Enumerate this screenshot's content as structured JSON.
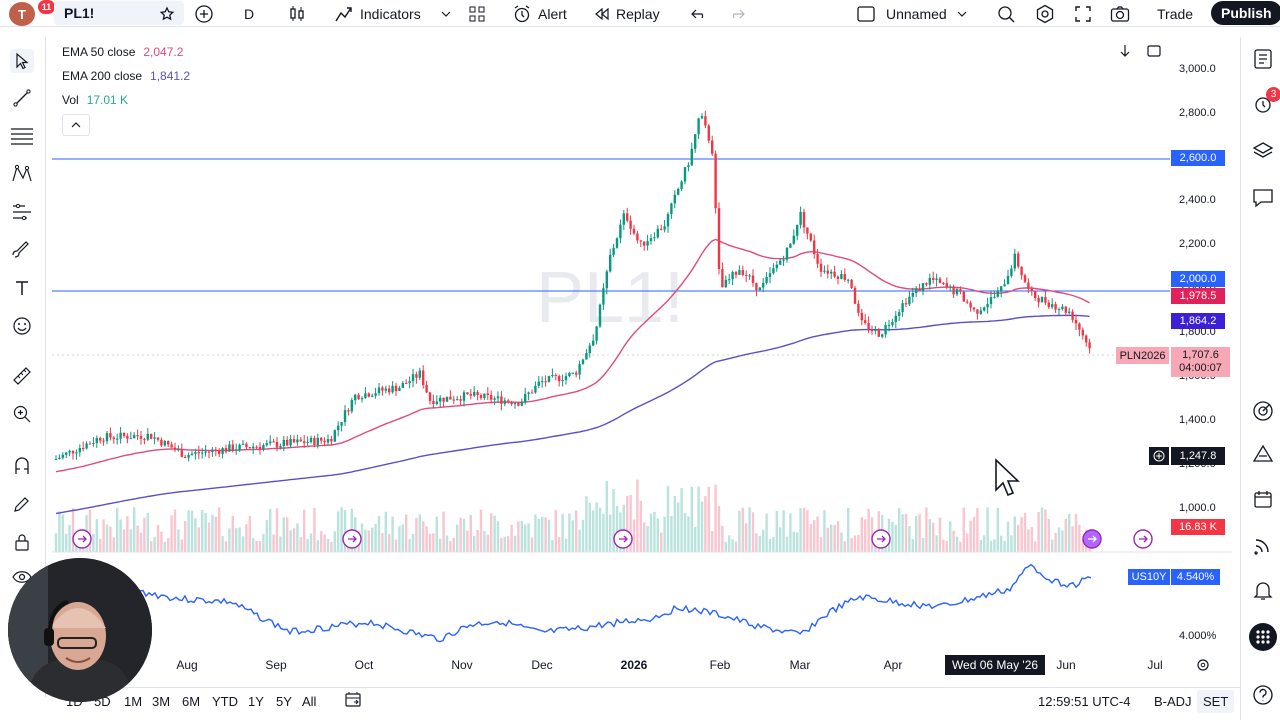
{
  "topbar": {
    "avatar_letter": "T",
    "notifications": "11",
    "symbol": "PL1!",
    "interval": "D",
    "indicators": "Indicators",
    "alert": "Alert",
    "replay": "Replay",
    "layout_name": "Unnamed",
    "trade": "Trade",
    "publish": "Publish"
  },
  "legend": {
    "ema50_label": "EMA 50 close",
    "ema50_value": "2,047.2",
    "ema200_label": "EMA 200 close",
    "ema200_value": "1,841.2",
    "vol_label": "Vol",
    "vol_value": "17.01 K"
  },
  "watermark": "PL1!",
  "price_axis": {
    "ticks": [
      "3,000.0",
      "2,800.0",
      "2,600.0",
      "2,400.0",
      "2,200.0",
      "2,000.0",
      "1,800.0",
      "1,600.0",
      "1,400.0",
      "1,200.0",
      "1,000.0"
    ],
    "tags": {
      "line_2600": "2,600.0",
      "line_2000": "2,000.0",
      "ema50": "1,978.5",
      "ema200": "1,864.2",
      "last_symbol": "PLN2026",
      "last_price": "1,707.6",
      "countdown": "04:00:07",
      "crosshair": "1,247.8",
      "volume": "16.83 K"
    }
  },
  "lower_pane": {
    "symbol": "US10Y",
    "value": "4.540%",
    "tick": "4.000%"
  },
  "time_axis": {
    "labels": [
      "Aug",
      "Sep",
      "Oct",
      "Nov",
      "Dec",
      "2026",
      "Feb",
      "Mar",
      "Apr",
      "Jun",
      "Jul"
    ],
    "crosshair_date": "Wed 06 May '26"
  },
  "bottombar": {
    "ranges": [
      "1D",
      "5D",
      "1M",
      "3M",
      "6M",
      "YTD",
      "1Y",
      "5Y",
      "All"
    ],
    "clock": "12:59:51 UTC-4",
    "badj": "B-ADJ",
    "set": "SET"
  },
  "notification_count_right": "3",
  "colors": {
    "ema50": "#e04a7c",
    "ema200": "#5b4fc9",
    "hline": "#2962ff",
    "up": "#089981",
    "down": "#f23645",
    "us10y": "#2962ff"
  },
  "chart_data": {
    "type": "candlestick",
    "symbol": "PL1!",
    "interval": "D",
    "horizontal_lines": [
      2600,
      2000
    ],
    "ema50_last": 1978.5,
    "ema200_last": 1864.2,
    "last_price": 1707.6,
    "ylim": [
      900,
      3100
    ],
    "close_series_points": [
      [
        "Jul",
        1230
      ],
      [
        "Aug",
        1300
      ],
      [
        "Sep",
        1270
      ],
      [
        "Oct",
        1560
      ],
      [
        "Nov",
        1540
      ],
      [
        "Dec",
        1620
      ],
      [
        "Dec late",
        2000
      ],
      [
        "Jan",
        2300
      ],
      [
        "Jan late",
        2900
      ],
      [
        "Feb",
        2050
      ],
      [
        "Mar",
        2200
      ],
      [
        "Mar late",
        1800
      ],
      [
        "Apr",
        2050
      ],
      [
        "May",
        1960
      ],
      [
        "May late",
        2150
      ],
      [
        "Jun",
        1940
      ],
      [
        "Jun last",
        1708
      ]
    ]
  }
}
